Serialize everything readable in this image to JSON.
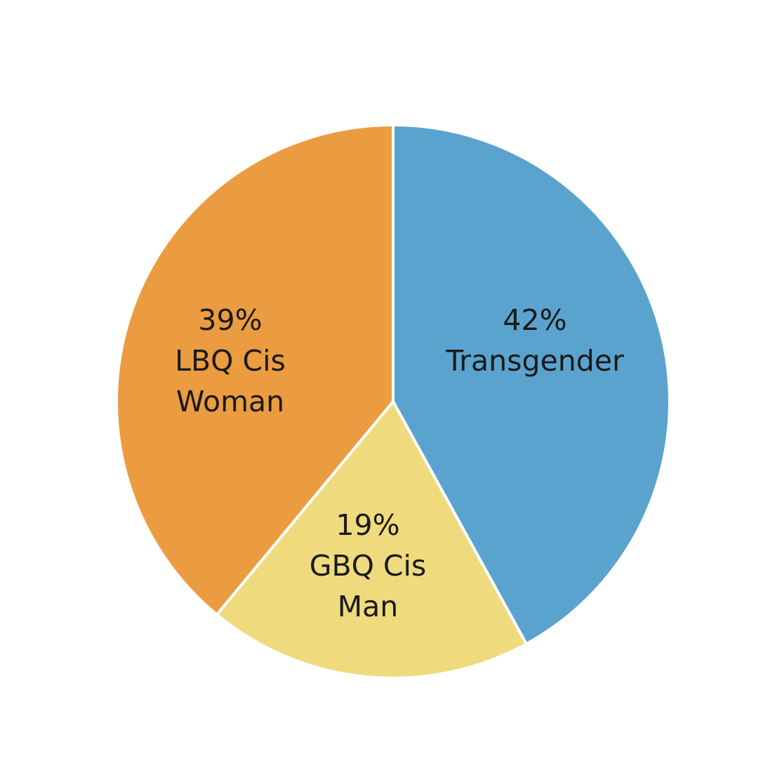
{
  "chart_data": {
    "type": "pie",
    "title": "",
    "slices": [
      {
        "value": 42,
        "percent_label": "42%",
        "label_lines": [
          "Transgender"
        ],
        "color": "#5ba3cf"
      },
      {
        "value": 19,
        "percent_label": "19%",
        "label_lines": [
          "GBQ Cis",
          "Man"
        ],
        "color": "#efdb7d"
      },
      {
        "value": 39,
        "percent_label": "39%",
        "label_lines": [
          "LBQ Cis",
          "Woman"
        ],
        "color": "#eb9c40"
      }
    ],
    "start_angle_deg": 0,
    "direction": "clockwise",
    "legend": "none"
  }
}
